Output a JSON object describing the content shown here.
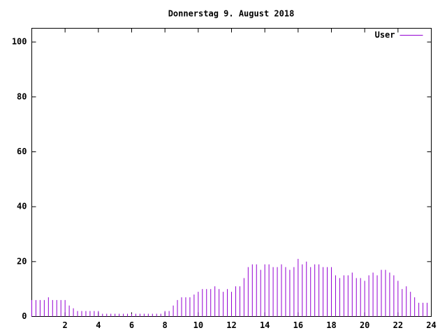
{
  "chart_data": {
    "type": "impulse",
    "title": "Donnerstag 9. August 2018",
    "series": [
      {
        "name": "User",
        "color": "#9400d3",
        "values": [
          6,
          6,
          6,
          6,
          7,
          6,
          6,
          6,
          6,
          4,
          3,
          2,
          2,
          2,
          2,
          2,
          2,
          1,
          1,
          1,
          1,
          1,
          1,
          1,
          1,
          1,
          1,
          1,
          1,
          1,
          1,
          1,
          2,
          2,
          4,
          6,
          7,
          7,
          7,
          8,
          9,
          10,
          10,
          10,
          11,
          10,
          9,
          10,
          9,
          11,
          11,
          14,
          18,
          19,
          19,
          17,
          19,
          19,
          18,
          18,
          19,
          18,
          17,
          18,
          21,
          19,
          20,
          18,
          19,
          19,
          18,
          18,
          18,
          15,
          14,
          15,
          15,
          16,
          14,
          14,
          13,
          15,
          16,
          15,
          17,
          17,
          16,
          15,
          13,
          10,
          11,
          9,
          7,
          5,
          5,
          5
        ]
      }
    ],
    "x": [
      0,
      0.25,
      0.5,
      0.75,
      1,
      1.25,
      1.5,
      1.75,
      2,
      2.25,
      2.5,
      2.75,
      3,
      3.25,
      3.5,
      3.75,
      4,
      4.25,
      4.5,
      4.75,
      5,
      5.25,
      5.5,
      5.75,
      6,
      6.25,
      6.5,
      6.75,
      7,
      7.25,
      7.5,
      7.75,
      8,
      8.25,
      8.5,
      8.75,
      9,
      9.25,
      9.5,
      9.75,
      10,
      10.25,
      10.5,
      10.75,
      11,
      11.25,
      11.5,
      11.75,
      12,
      12.25,
      12.5,
      12.75,
      13,
      13.25,
      13.5,
      13.75,
      14,
      14.25,
      14.5,
      14.75,
      15,
      15.25,
      15.5,
      15.75,
      16,
      16.25,
      16.5,
      16.75,
      17,
      17.25,
      17.5,
      17.75,
      18,
      18.25,
      18.5,
      18.75,
      19,
      19.25,
      19.5,
      19.75,
      20,
      20.25,
      20.5,
      20.75,
      21,
      21.25,
      21.5,
      21.75,
      22,
      22.25,
      22.5,
      22.75,
      23,
      23.25,
      23.5,
      23.75
    ],
    "xlim": [
      0,
      24
    ],
    "xticks": [
      2,
      4,
      6,
      8,
      10,
      12,
      14,
      16,
      18,
      20,
      22,
      24
    ],
    "ylim": [
      0,
      105
    ],
    "yticks": [
      0,
      20,
      40,
      60,
      80,
      100
    ],
    "legend": "top-right"
  }
}
